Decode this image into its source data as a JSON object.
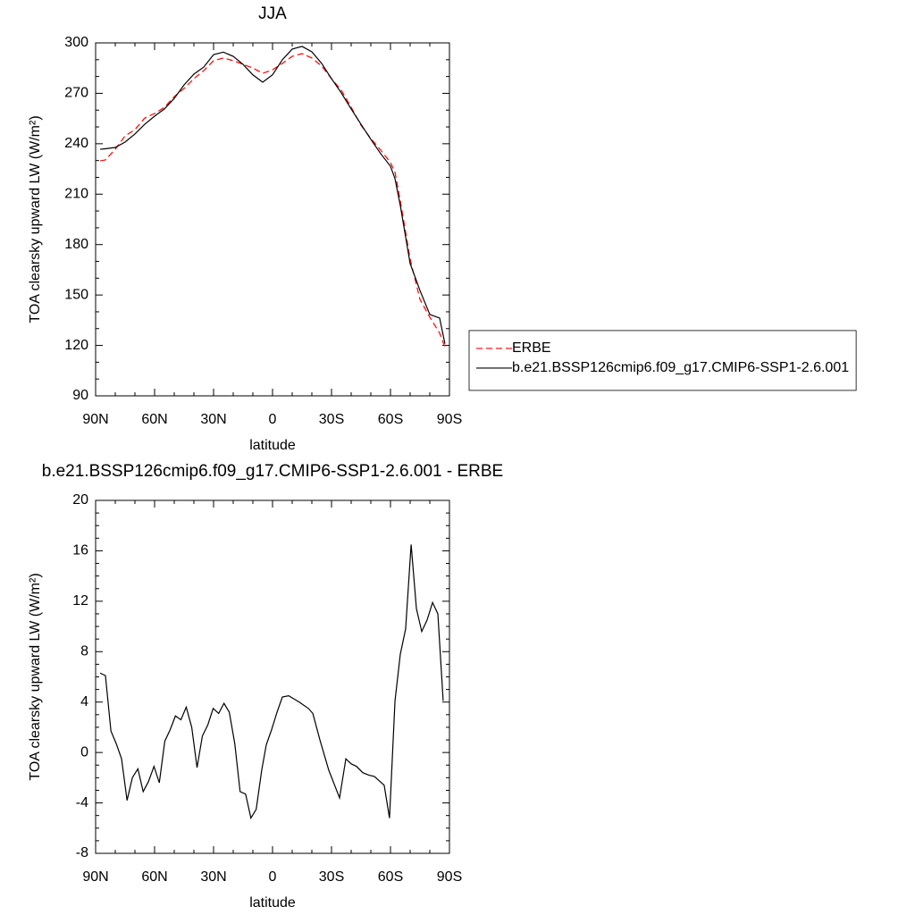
{
  "chart_data": [
    {
      "type": "line",
      "title": "JJA",
      "xlabel": "latitude",
      "ylabel": "TOA clearsky upward LW (W/m²)",
      "x": [
        87.7,
        85,
        80,
        75,
        70,
        65,
        60,
        55,
        50,
        45,
        40,
        35,
        30,
        25,
        20,
        15,
        10,
        5,
        0,
        -5,
        -10,
        -15,
        -20,
        -25,
        -30,
        -35,
        -40,
        -45,
        -50,
        -55,
        -60,
        -62.3,
        -65,
        -70,
        -75,
        -80,
        -85,
        -87.7
      ],
      "series": [
        {
          "name": "ERBE",
          "color": "#ff0000",
          "line_style": "dashed",
          "values": [
            229.8,
            230.4,
            236.7,
            244.7,
            248.4,
            255.3,
            258,
            261.7,
            268,
            272.9,
            278.7,
            283.5,
            289.4,
            291,
            289.4,
            287.2,
            285,
            281.9,
            284,
            287.8,
            292,
            293.6,
            291,
            286.2,
            278.7,
            271.8,
            261.7,
            251,
            243.1,
            236.2,
            228.8,
            223,
            206,
            171.3,
            147.4,
            136.8,
            127.3,
            119
          ]
        },
        {
          "name": "b.e21.BSSP126cmip6.f09_g17.CMIP6-SSP1-2.6.001",
          "color": "#000000",
          "line_style": "solid",
          "values": [
            236.7,
            237,
            237.8,
            241,
            245.8,
            251.6,
            256.4,
            260.7,
            267,
            275,
            281.4,
            285.6,
            293,
            294.5,
            292,
            287.2,
            281,
            276.6,
            281,
            290,
            296.3,
            297.9,
            294.7,
            287.8,
            278.7,
            270.2,
            260.7,
            251.6,
            242.6,
            234.1,
            226.6,
            219.2,
            203.2,
            168.7,
            152.7,
            138.4,
            136.3,
            121
          ]
        }
      ],
      "xlim": [
        90,
        -90
      ],
      "xticks": [
        {
          "value": 90,
          "label": "90N"
        },
        {
          "value": 60,
          "label": "60N"
        },
        {
          "value": 30,
          "label": "30N"
        },
        0,
        {
          "value": -30,
          "label": "30S"
        },
        {
          "value": -60,
          "label": "60S"
        },
        {
          "value": -90,
          "label": "90S"
        }
      ],
      "xticks_minor": [
        80,
        70,
        50,
        40,
        20,
        10,
        -10,
        -20,
        -40,
        -50,
        -70,
        -80
      ],
      "ylim": [
        90,
        300
      ],
      "yticks": [
        90,
        120,
        150,
        180,
        210,
        240,
        270,
        300
      ],
      "yticks_minor": [
        100,
        110,
        130,
        140,
        160,
        170,
        190,
        200,
        220,
        230,
        250,
        260,
        280,
        290
      ],
      "legend": "right"
    },
    {
      "type": "line",
      "title": "b.e21.BSSP126cmip6.f09_g17.CMIP6-SSP1-2.6.001 - ERBE",
      "xlabel": "latitude",
      "ylabel": "TOA clearsky upward LW (W/m²)",
      "x": [
        87.7,
        85.0,
        82.2,
        79.5,
        76.8,
        74.0,
        71.3,
        68.5,
        65.8,
        63.1,
        60.3,
        57.6,
        54.8,
        52.1,
        49.4,
        46.6,
        43.9,
        41.1,
        38.4,
        35.7,
        32.9,
        30.2,
        27.4,
        24.7,
        22.0,
        19.2,
        16.5,
        13.7,
        11.0,
        8.3,
        5.5,
        3.2,
        0.5,
        -2.3,
        -5.0,
        -8.2,
        -13.6,
        -18.2,
        -20.5,
        -24.1,
        -28.6,
        -34.1,
        -37.3,
        -40.0,
        -42.7,
        -45.9,
        -49.1,
        -51.8,
        -56.8,
        -59.5,
        -62.3,
        -65.0,
        -67.7,
        -70.5,
        -73.2,
        -75.9,
        -78.6,
        -81.4,
        -84.1,
        -86.8
      ],
      "series": [
        {
          "color": "#000000",
          "line_style": "solid",
          "values": [
            6.3,
            6.1,
            1.7,
            0.7,
            -0.5,
            -3.8,
            -2.0,
            -1.3,
            -3.1,
            -2.3,
            -1.1,
            -2.4,
            0.9,
            1.8,
            2.9,
            2.6,
            3.6,
            2.0,
            -1.2,
            1.3,
            2.2,
            3.5,
            3.1,
            3.9,
            3.2,
            0.7,
            -3.1,
            -3.3,
            -5.2,
            -4.5,
            -1.4,
            0.6,
            1.8,
            3.2,
            4.4,
            4.5,
            4.0,
            3.5,
            3.1,
            1.0,
            -1.4,
            -3.6,
            -0.5,
            -0.9,
            -1.1,
            -1.6,
            -1.8,
            -1.9,
            -2.6,
            -5.2,
            4.1,
            7.8,
            9.8,
            16.5,
            11.4,
            9.6,
            10.5,
            11.9,
            11.0,
            4.1
          ]
        }
      ],
      "xlim": [
        90,
        -90
      ],
      "xticks": [
        {
          "value": 90,
          "label": "90N"
        },
        {
          "value": 60,
          "label": "60N"
        },
        {
          "value": 30,
          "label": "30N"
        },
        0,
        {
          "value": -30,
          "label": "30S"
        },
        {
          "value": -60,
          "label": "60S"
        },
        {
          "value": -90,
          "label": "90S"
        }
      ],
      "xticks_minor": [
        80,
        70,
        50,
        40,
        20,
        10,
        -10,
        -20,
        -40,
        -50,
        -70,
        -80
      ],
      "ylim": [
        -8,
        20
      ],
      "yticks": [
        -8,
        -4,
        0,
        4,
        8,
        12,
        16,
        20
      ],
      "yticks_minor": [
        -7,
        -6,
        -5,
        -3,
        -2,
        -1,
        1,
        2,
        3,
        5,
        6,
        7,
        9,
        10,
        11,
        13,
        14,
        15,
        17,
        18,
        19
      ]
    }
  ]
}
